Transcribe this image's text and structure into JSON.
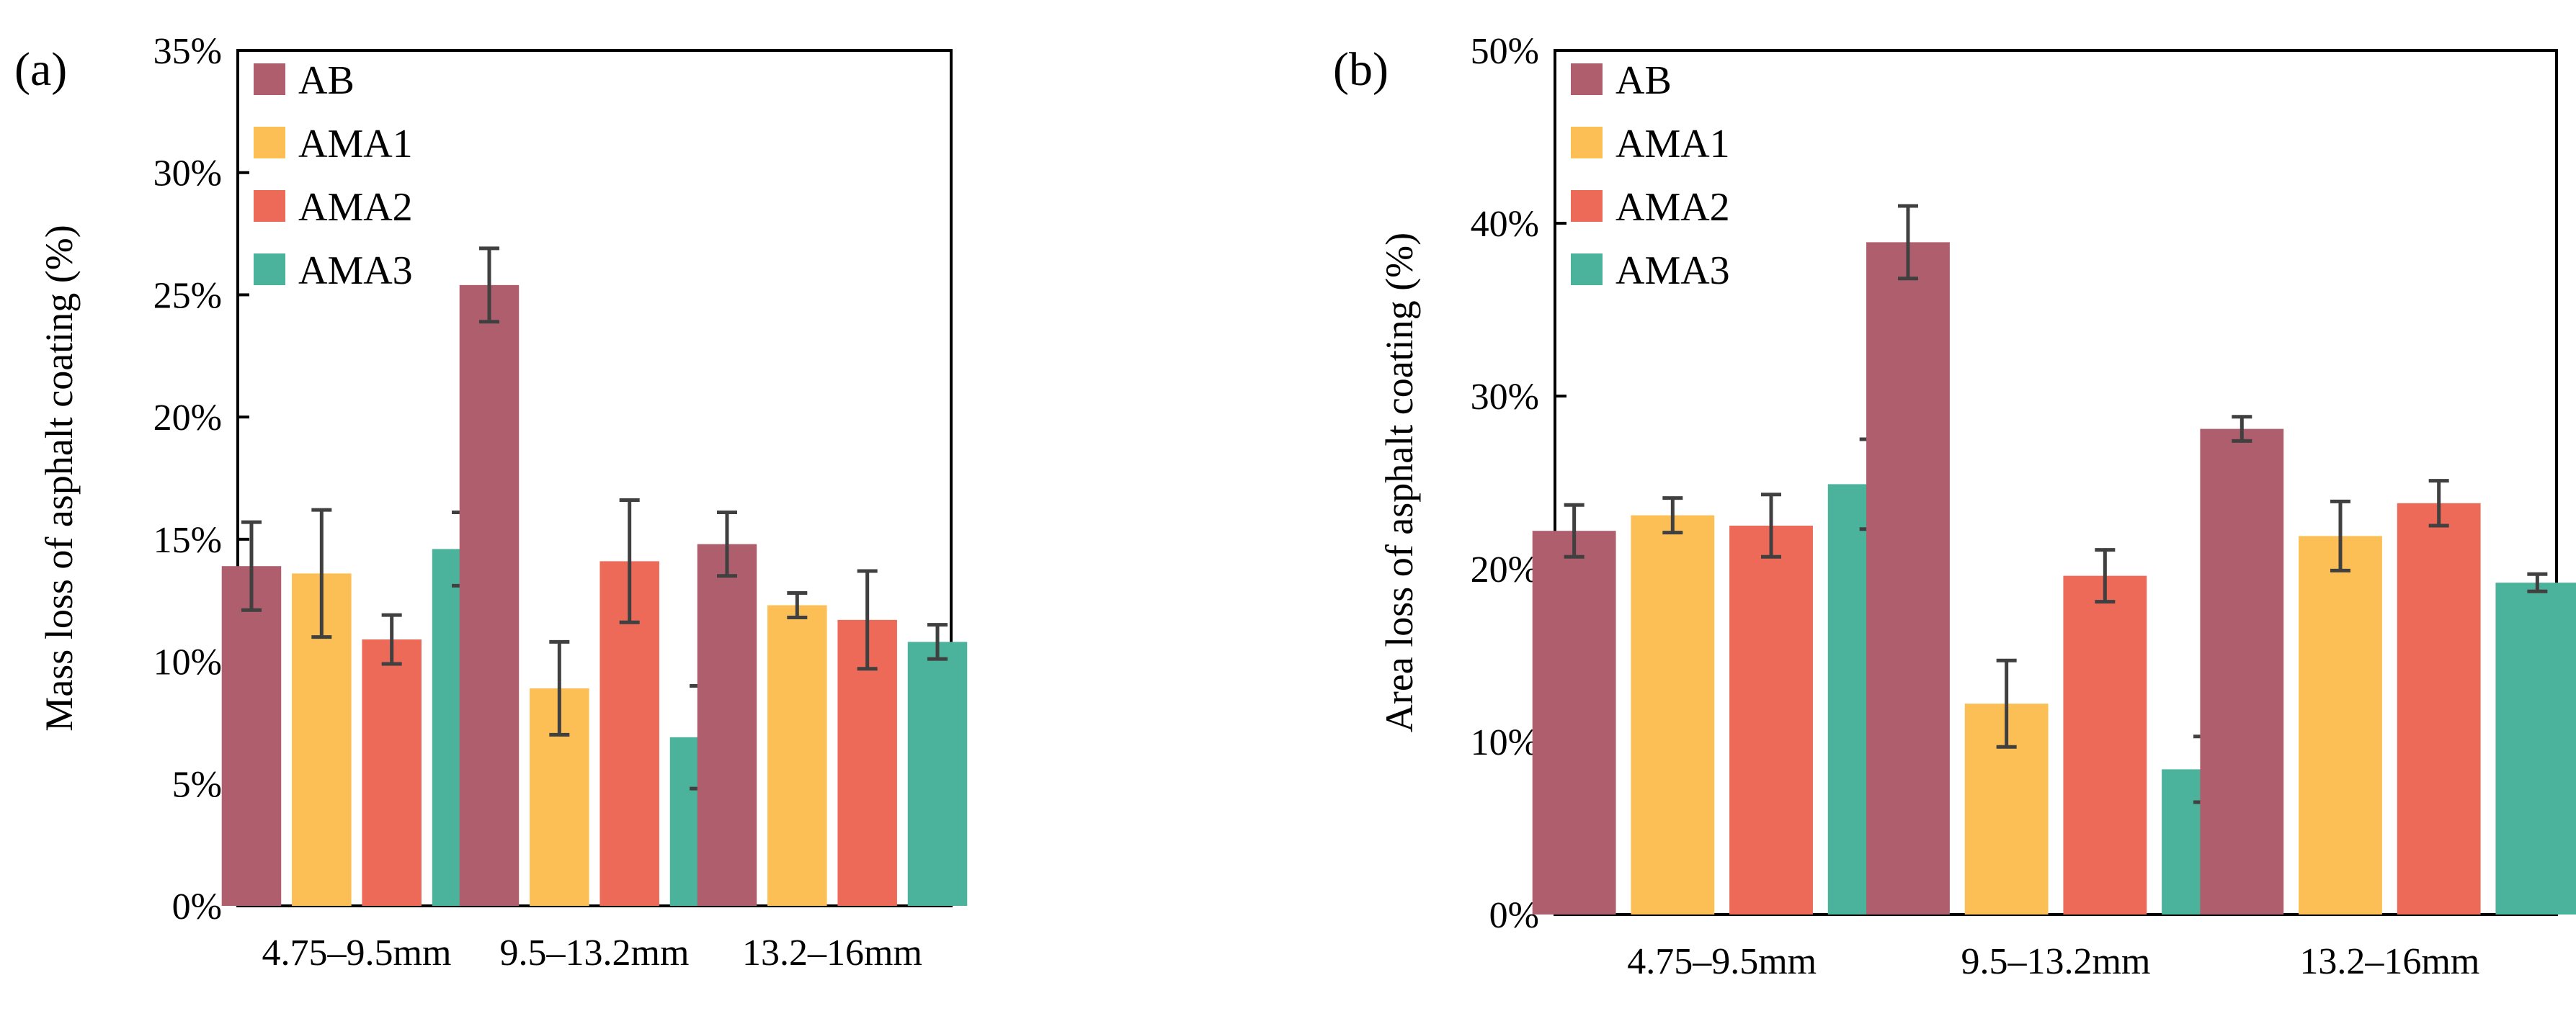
{
  "chart_data": [
    {
      "type": "bar",
      "panel_label": "(a)",
      "title": "",
      "xlabel": "",
      "ylabel": "Mass loss of asphalt coating (%)",
      "categories": [
        "4.75–9.5mm",
        "9.5–13.2mm",
        "13.2–16mm"
      ],
      "ylim": [
        0,
        35
      ],
      "yticks": [
        0,
        5,
        10,
        15,
        20,
        25,
        30,
        35
      ],
      "ytick_labels": [
        "0%",
        "5%",
        "10%",
        "15%",
        "20%",
        "25%",
        "30%",
        "35%"
      ],
      "legend_position": "top-left",
      "grid": false,
      "series": [
        {
          "name": "AB",
          "color": "#AE5E6C",
          "values": [
            13.9,
            25.4,
            14.8
          ],
          "errors": [
            1.8,
            1.5,
            1.3
          ]
        },
        {
          "name": "AMA1",
          "color": "#FCBF55",
          "values": [
            13.6,
            8.9,
            12.3
          ],
          "errors": [
            2.6,
            1.9,
            0.5
          ]
        },
        {
          "name": "AMA2",
          "color": "#EC6A57",
          "values": [
            10.9,
            14.1,
            11.7
          ],
          "errors": [
            1.0,
            2.5,
            2.0
          ]
        },
        {
          "name": "AMA3",
          "color": "#4BB29C",
          "values": [
            14.6,
            6.9,
            10.8
          ],
          "errors": [
            1.5,
            2.1,
            0.7
          ]
        }
      ]
    },
    {
      "type": "bar",
      "panel_label": "(b)",
      "title": "",
      "xlabel": "",
      "ylabel": "Area loss of asphalt coating (%)",
      "categories": [
        "4.75–9.5mm",
        "9.5–13.2mm",
        "13.2–16mm"
      ],
      "ylim": [
        0,
        50
      ],
      "yticks": [
        0,
        10,
        20,
        30,
        40,
        50
      ],
      "ytick_labels": [
        "0%",
        "10%",
        "20%",
        "30%",
        "40%",
        "50%"
      ],
      "legend_position": "top-left",
      "grid": false,
      "series": [
        {
          "name": "AB",
          "color": "#AE5E6C",
          "values": [
            22.2,
            38.9,
            28.1
          ],
          "errors": [
            1.5,
            2.1,
            0.7
          ]
        },
        {
          "name": "AMA1",
          "color": "#FCBF55",
          "values": [
            23.1,
            12.2,
            21.9
          ],
          "errors": [
            1.0,
            2.5,
            2.0
          ]
        },
        {
          "name": "AMA2",
          "color": "#EC6A57",
          "values": [
            22.5,
            19.6,
            23.8
          ],
          "errors": [
            1.8,
            1.5,
            1.3
          ]
        },
        {
          "name": "AMA3",
          "color": "#4BB29C",
          "values": [
            24.9,
            8.4,
            19.2
          ],
          "errors": [
            2.6,
            1.9,
            0.5
          ]
        }
      ]
    }
  ]
}
